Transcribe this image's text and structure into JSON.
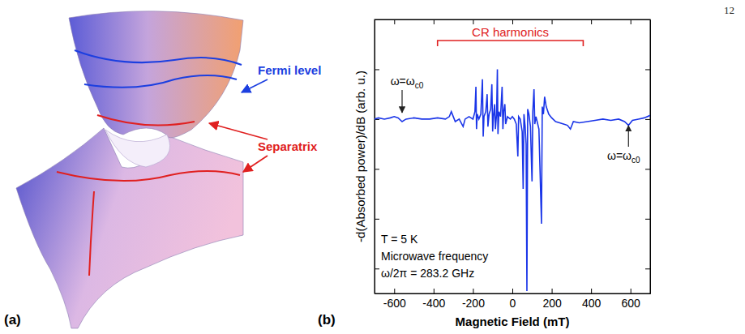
{
  "page_number": "12",
  "panel_labels": [
    "(a)",
    "(b)"
  ],
  "panel_a": {
    "labels": [
      {
        "text": "Fermi level",
        "color": "#1c3fe0"
      },
      {
        "text": "Separatrix",
        "color": "#e02020"
      }
    ]
  },
  "chart_data": {
    "type": "line",
    "x_label": "Magnetic Field (mT)",
    "y_label": "-d(Absorbed power)/dB (arb. u.)",
    "color": "#1a35e8",
    "xlim": [
      -700,
      700
    ],
    "xticks": [
      -600,
      -400,
      -200,
      0,
      200,
      400,
      600
    ],
    "ylim": [
      -7,
      4
    ],
    "yticks": [
      -6,
      -4,
      -2,
      0,
      2,
      4
    ],
    "tick_labels": "x",
    "x": [
      -700,
      -680,
      -650,
      -620,
      -600,
      -580,
      -560,
      -540,
      -500,
      -460,
      -420,
      -380,
      -340,
      -320,
      -310,
      -300,
      -290,
      -270,
      -250,
      -240,
      -220,
      -200,
      -190,
      -185,
      -182,
      -178,
      -170,
      -160,
      -152,
      -148,
      -144,
      -135,
      -128,
      -124,
      -118,
      -110,
      -104,
      -100,
      -96,
      -90,
      -86,
      -80,
      -76,
      -73,
      -68,
      -60,
      -52,
      -48,
      -44,
      -38,
      -34,
      -25,
      -10,
      0,
      10,
      20,
      28,
      32,
      40,
      50,
      55,
      59,
      65,
      70,
      74,
      78,
      84,
      92,
      100,
      104,
      110,
      114,
      120,
      135,
      148,
      152,
      158,
      164,
      172,
      185,
      200,
      220,
      240,
      260,
      280,
      295,
      310,
      340,
      380,
      420,
      460,
      500,
      540,
      570,
      590,
      610,
      640,
      670,
      700
    ],
    "values": [
      0.0,
      0.05,
      0.0,
      0.05,
      0.1,
      0.05,
      -0.1,
      0.0,
      0.05,
      0.0,
      0.0,
      0.05,
      0.0,
      0.1,
      0.3,
      0.1,
      -0.1,
      0.0,
      -0.3,
      0.0,
      0.1,
      0.0,
      0.3,
      1.3,
      -0.4,
      0.2,
      0.0,
      0.2,
      1.6,
      -0.7,
      0.1,
      0.3,
      1.0,
      -0.3,
      0.2,
      0.4,
      1.4,
      -0.5,
      0.1,
      0.6,
      -0.4,
      0.2,
      2.0,
      -0.6,
      0.3,
      0.1,
      1.3,
      -0.4,
      0.3,
      0.6,
      -0.2,
      0.1,
      0.0,
      0.1,
      0.0,
      -0.2,
      -1.5,
      0.1,
      0.0,
      -0.5,
      -2.8,
      0.2,
      -0.3,
      -1.0,
      -6.9,
      0.4,
      0.2,
      -0.3,
      -2.5,
      0.3,
      1.2,
      -0.2,
      0.1,
      -0.4,
      -4.2,
      0.5,
      0.2,
      0.9,
      0.5,
      0.2,
      0.05,
      -0.1,
      -0.15,
      -0.2,
      -0.25,
      -0.4,
      -0.1,
      -0.15,
      -0.1,
      -0.05,
      0.0,
      -0.05,
      0.0,
      -0.1,
      -0.25,
      -0.05,
      0.0,
      0.05,
      0.15
    ],
    "bracket": {
      "text": "CR harmonics",
      "x": [
        -380,
        360
      ],
      "color": "#e02020"
    },
    "markers": [
      {
        "text": "ω=ω",
        "subscript": "c0",
        "x": -560
      },
      {
        "text": "ω=ω",
        "subscript": "c0",
        "x": 590
      }
    ],
    "notes": [
      "T = 5 K",
      "Microwave frequency",
      "ω/2π = 283.2 GHz"
    ]
  }
}
